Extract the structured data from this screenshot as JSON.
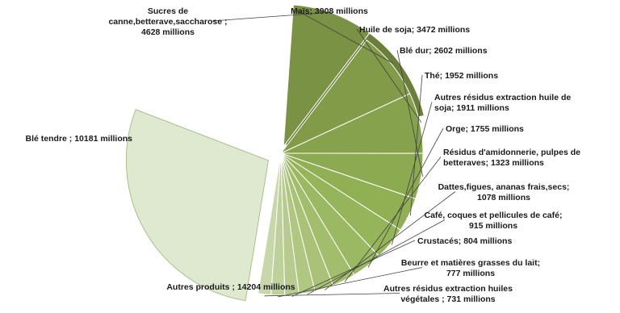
{
  "chart_data": {
    "type": "pie",
    "title": "",
    "unit": "millions",
    "slices": [
      {
        "label": "Blé tendre",
        "value": 10181,
        "display": [
          "Blé tendre ; 10181 millions"
        ],
        "color": "#6b7f3a"
      },
      {
        "label": "Sucres de canne,betterave,saccharose",
        "value": 4628,
        "display": [
          "Sucres de",
          "canne,betterave,saccharose ;",
          "4628 millions"
        ],
        "color": "#7a9244"
      },
      {
        "label": "Maïs",
        "value": 3908,
        "display": [
          "Maïs; 3908 millions"
        ],
        "color": "#819b48"
      },
      {
        "label": "Huile de soja",
        "value": 3472,
        "display": [
          "Huile de soja; 3472 millions"
        ],
        "color": "#87a24c"
      },
      {
        "label": "Blé dur",
        "value": 2602,
        "display": [
          "Blé dur; 2602 millions"
        ],
        "color": "#8caa50"
      },
      {
        "label": "Thé",
        "value": 1952,
        "display": [
          "Thé; 1952 millions"
        ],
        "color": "#91b054"
      },
      {
        "label": "Autres résidus extraction huile de soja",
        "value": 1911,
        "display": [
          "Autres résidus extraction huile de",
          "soja; 1911 millions"
        ],
        "color": "#96b55a"
      },
      {
        "label": "Orge",
        "value": 1755,
        "display": [
          "Orge; 1755 millions"
        ],
        "color": "#9bb962"
      },
      {
        "label": "Résidus d'amidonnerie, pulpes de betteraves",
        "value": 1323,
        "display": [
          "Résidus d'amidonnerie, pulpes de",
          "betteraves; 1323 millions"
        ],
        "color": "#a2be6c"
      },
      {
        "label": "Dattes,figues, ananas frais,secs",
        "value": 1078,
        "display": [
          "Dattes,figues, ananas frais,secs;",
          "1078 millions"
        ],
        "color": "#a9c277"
      },
      {
        "label": "Café, coques et pellicules de café",
        "value": 915,
        "display": [
          "Café, coques et pellicules de café;",
          "915 millions"
        ],
        "color": "#b0c782"
      },
      {
        "label": "Crustacés",
        "value": 804,
        "display": [
          "Crustacés; 804 millions"
        ],
        "color": "#b7cb8e"
      },
      {
        "label": "Beurre et matières grasses du lait",
        "value": 777,
        "display": [
          "Beurre et matières grasses du lait;",
          "777 millions"
        ],
        "color": "#bfd19b"
      },
      {
        "label": "Autres résidus extraction huiles végétales",
        "value": 731,
        "display": [
          "Autres résidus extraction huiles",
          "végétales ; 731 millions"
        ],
        "color": "#c7d7a9"
      },
      {
        "label": "Autres produits",
        "value": 14204,
        "display": [
          "Autres produits  ; 14204 millions"
        ],
        "color": "#dfe9cf"
      }
    ]
  }
}
